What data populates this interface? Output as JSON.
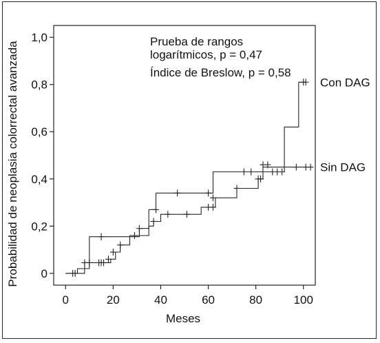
{
  "chart_data": {
    "type": "line",
    "subtype": "kaplan-meier step curves",
    "title": "",
    "xlabel": "Meses",
    "ylabel": "Probabilidad de neoplasia colorrectal avanzada",
    "xlim": [
      -5,
      105
    ],
    "ylim": [
      -0.05,
      1.05
    ],
    "x_ticks": [
      0,
      20,
      40,
      60,
      80,
      100
    ],
    "y_ticks": [
      0,
      0.2,
      0.4,
      0.6,
      0.8,
      1.0
    ],
    "x_tick_labels": [
      "0",
      "20",
      "40",
      "60",
      "80",
      "100"
    ],
    "y_tick_labels": [
      "0",
      "0,2",
      "0,4",
      "0,6",
      "0,8",
      "1,0"
    ],
    "grid": false,
    "legend": "labels at right end of each curve",
    "annotations": {
      "logrank_line1": "Prueba de rangos",
      "logrank_line2": "logarítmicos, p = 0,47",
      "breslow": "Índice de Breslow, p = 0,58"
    },
    "series": [
      {
        "name": "Con DAG",
        "steps": [
          [
            0,
            0
          ],
          [
            5,
            0.02
          ],
          [
            10,
            0.155
          ],
          [
            28,
            0.155
          ],
          [
            31,
            0.19
          ],
          [
            35,
            0.27
          ],
          [
            38,
            0.34
          ],
          [
            62,
            0.34
          ],
          [
            62,
            0.43
          ],
          [
            92,
            0.43
          ],
          [
            92,
            0.62
          ],
          [
            98,
            0.62
          ],
          [
            98,
            0.81
          ],
          [
            101,
            0.81
          ]
        ],
        "censored": [
          [
            15,
            0.155
          ],
          [
            31,
            0.19
          ],
          [
            38,
            0.27
          ],
          [
            47,
            0.34
          ],
          [
            60,
            0.34
          ],
          [
            62,
            0.32
          ],
          [
            87,
            0.43
          ],
          [
            89,
            0.43
          ],
          [
            91,
            0.43
          ],
          [
            100,
            0.81
          ],
          [
            101,
            0.81
          ]
        ]
      },
      {
        "name": "Sin DAG",
        "steps": [
          [
            0,
            0
          ],
          [
            4,
            0
          ],
          [
            8,
            0.045
          ],
          [
            18,
            0.045
          ],
          [
            19,
            0.06
          ],
          [
            21,
            0.09
          ],
          [
            23,
            0.12
          ],
          [
            27,
            0.16
          ],
          [
            35,
            0.2
          ],
          [
            37,
            0.22
          ],
          [
            40,
            0.25
          ],
          [
            57,
            0.28
          ],
          [
            63,
            0.28
          ],
          [
            63,
            0.32
          ],
          [
            72,
            0.36
          ],
          [
            81,
            0.36
          ],
          [
            81,
            0.4
          ],
          [
            83,
            0.45
          ],
          [
            104,
            0.45
          ]
        ],
        "censored": [
          [
            3,
            0
          ],
          [
            4,
            0
          ],
          [
            8,
            0.045
          ],
          [
            10,
            0.045
          ],
          [
            14,
            0.045
          ],
          [
            15,
            0.045
          ],
          [
            16,
            0.045
          ],
          [
            18,
            0.06
          ],
          [
            20,
            0.09
          ],
          [
            23,
            0.12
          ],
          [
            29,
            0.16
          ],
          [
            37,
            0.22
          ],
          [
            43,
            0.25
          ],
          [
            51,
            0.25
          ],
          [
            60,
            0.28
          ],
          [
            62,
            0.28
          ],
          [
            72,
            0.36
          ],
          [
            75,
            0.43
          ],
          [
            78,
            0.43
          ],
          [
            81,
            0.4
          ],
          [
            82,
            0.4
          ],
          [
            83,
            0.46
          ],
          [
            85,
            0.46
          ],
          [
            97,
            0.45
          ],
          [
            101,
            0.45
          ],
          [
            103,
            0.45
          ]
        ]
      }
    ]
  }
}
